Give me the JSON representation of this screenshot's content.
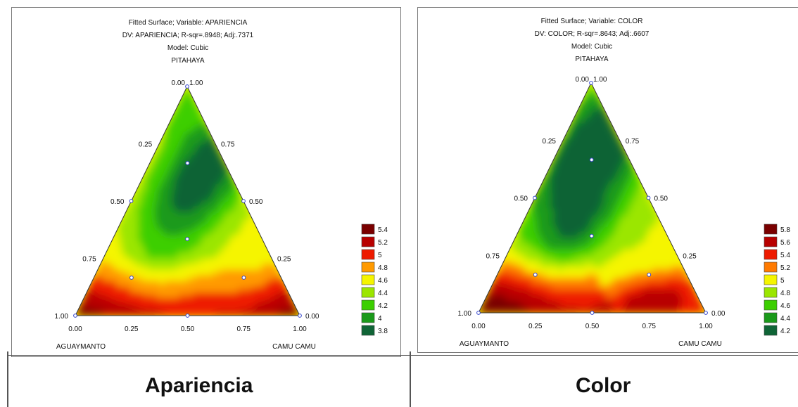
{
  "chart_data": [
    {
      "type": "heatmap",
      "subtype": "ternary-contour",
      "caption": "Apariencia",
      "title_lines": [
        "Fitted Surface; Variable: APARIENCIA",
        "DV: APARIENCIA; R-sqr=.8948; Adj:.7371",
        "Model: Cubic"
      ],
      "axes": {
        "top": "PITAHAYA",
        "left": "AGUAYMANTO",
        "right": "CAMU CAMU",
        "top_vertex_labels": [
          "0.00",
          "1.00"
        ],
        "left_edge_ticks": [
          "0.25",
          "0.50",
          "0.75",
          "1.00"
        ],
        "right_edge_ticks": [
          "0.75",
          "0.50",
          "0.25",
          "0.00"
        ],
        "bottom_ticks": [
          "0.00",
          "0.25",
          "0.50",
          "0.75",
          "1.00"
        ],
        "range": [
          0,
          1
        ]
      },
      "legend": {
        "position": "right",
        "levels": [
          {
            "label": "5.4",
            "color": "#7a0000"
          },
          {
            "label": "5.2",
            "color": "#b80000"
          },
          {
            "label": "5",
            "color": "#ee1a00"
          },
          {
            "label": "4.8",
            "color": "#ff9a00"
          },
          {
            "label": "4.6",
            "color": "#f5f500"
          },
          {
            "label": "4.4",
            "color": "#9be600"
          },
          {
            "label": "4.2",
            "color": "#3ccf00"
          },
          {
            "label": "4",
            "color": "#1a9a1a"
          },
          {
            "label": "3.8",
            "color": "#0f6436"
          }
        ]
      },
      "surface_color_levels": [
        "#7a0000",
        "#b80000",
        "#ee1a00",
        "#ff9a00",
        "#f5f500",
        "#9be600",
        "#3ccf00",
        "#1a9a1a",
        "#0f6436"
      ],
      "design_points": [
        {
          "pitahaya": 1.0,
          "aguaymanto": 0.0,
          "camu_camu": 0.0
        },
        {
          "pitahaya": 0.0,
          "aguaymanto": 1.0,
          "camu_camu": 0.0
        },
        {
          "pitahaya": 0.0,
          "aguaymanto": 0.0,
          "camu_camu": 1.0
        },
        {
          "pitahaya": 0.5,
          "aguaymanto": 0.5,
          "camu_camu": 0.0
        },
        {
          "pitahaya": 0.5,
          "aguaymanto": 0.0,
          "camu_camu": 0.5
        },
        {
          "pitahaya": 0.0,
          "aguaymanto": 0.5,
          "camu_camu": 0.5
        },
        {
          "pitahaya": 0.667,
          "aguaymanto": 0.167,
          "camu_camu": 0.167
        },
        {
          "pitahaya": 0.167,
          "aguaymanto": 0.667,
          "camu_camu": 0.167
        },
        {
          "pitahaya": 0.167,
          "aguaymanto": 0.167,
          "camu_camu": 0.667
        },
        {
          "pitahaya": 0.333,
          "aguaymanto": 0.333,
          "camu_camu": 0.333
        }
      ],
      "grid": false
    },
    {
      "type": "heatmap",
      "subtype": "ternary-contour",
      "caption": "Color",
      "title_lines": [
        "Fitted Surface; Variable: COLOR",
        "DV: COLOR; R-sqr=.8643; Adj:.6607",
        "Model: Cubic"
      ],
      "axes": {
        "top": "PITAHAYA",
        "left": "AGUAYMANTO",
        "right": "CAMU CAMU",
        "top_vertex_labels": [
          "0.00",
          "1.00"
        ],
        "left_edge_ticks": [
          "0.25",
          "0.50",
          "0.75",
          "1.00"
        ],
        "right_edge_ticks": [
          "0.75",
          "0.50",
          "0.25",
          "0.00"
        ],
        "bottom_ticks": [
          "0.00",
          "0.25",
          "0.50",
          "0.75",
          "1.00"
        ],
        "range": [
          0,
          1
        ]
      },
      "legend": {
        "position": "right",
        "levels": [
          {
            "label": "5.8",
            "color": "#7a0000"
          },
          {
            "label": "5.6",
            "color": "#b80000"
          },
          {
            "label": "5.4",
            "color": "#ee1a00"
          },
          {
            "label": "5.2",
            "color": "#ff7a00"
          },
          {
            "label": "5",
            "color": "#f5f500"
          },
          {
            "label": "4.8",
            "color": "#9be600"
          },
          {
            "label": "4.6",
            "color": "#3ccf00"
          },
          {
            "label": "4.4",
            "color": "#1a9a1a"
          },
          {
            "label": "4.2",
            "color": "#0f6436"
          }
        ]
      },
      "surface_color_levels": [
        "#7a0000",
        "#b80000",
        "#ee1a00",
        "#ff7a00",
        "#f5f500",
        "#9be600",
        "#3ccf00",
        "#1a9a1a",
        "#0f6436"
      ],
      "design_points": [
        {
          "pitahaya": 1.0,
          "aguaymanto": 0.0,
          "camu_camu": 0.0
        },
        {
          "pitahaya": 0.0,
          "aguaymanto": 1.0,
          "camu_camu": 0.0
        },
        {
          "pitahaya": 0.0,
          "aguaymanto": 0.0,
          "camu_camu": 1.0
        },
        {
          "pitahaya": 0.5,
          "aguaymanto": 0.5,
          "camu_camu": 0.0
        },
        {
          "pitahaya": 0.5,
          "aguaymanto": 0.0,
          "camu_camu": 0.5
        },
        {
          "pitahaya": 0.0,
          "aguaymanto": 0.5,
          "camu_camu": 0.5
        },
        {
          "pitahaya": 0.667,
          "aguaymanto": 0.167,
          "camu_camu": 0.167
        },
        {
          "pitahaya": 0.167,
          "aguaymanto": 0.667,
          "camu_camu": 0.167
        },
        {
          "pitahaya": 0.167,
          "aguaymanto": 0.167,
          "camu_camu": 0.667
        },
        {
          "pitahaya": 0.333,
          "aguaymanto": 0.333,
          "camu_camu": 0.333
        }
      ],
      "grid": false
    }
  ]
}
